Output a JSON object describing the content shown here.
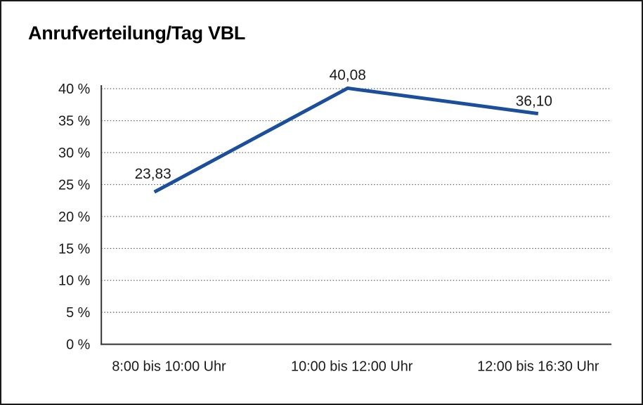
{
  "title": "Anrufverteilung/Tag VBL",
  "chart_data": {
    "type": "line",
    "title": "Anrufverteilung/Tag VBL",
    "categories": [
      "8:00 bis 10:00 Uhr",
      "10:00 bis 12:00 Uhr",
      "12:00 bis 16:30 Uhr"
    ],
    "values": [
      23.83,
      40.08,
      36.1
    ],
    "value_labels": [
      "23,83",
      "40,08",
      "36,10"
    ],
    "xlabel": "",
    "ylabel": "",
    "ylim": [
      0,
      40
    ],
    "ytick_values": [
      0,
      5,
      10,
      15,
      20,
      25,
      30,
      35,
      40
    ],
    "ytick_labels": [
      "0 %",
      "5 %",
      "10 %",
      "15 %",
      "20 %",
      "25 %",
      "30 %",
      "35 %",
      "40 %"
    ],
    "grid": "horizontal-dotted",
    "legend": "none",
    "colors": {
      "line": "#1b4f9b",
      "grid": "#666666",
      "axis": "#333333",
      "text": "#1a1a1a",
      "border": "#1a1a1a",
      "background": "#ffffff"
    }
  }
}
